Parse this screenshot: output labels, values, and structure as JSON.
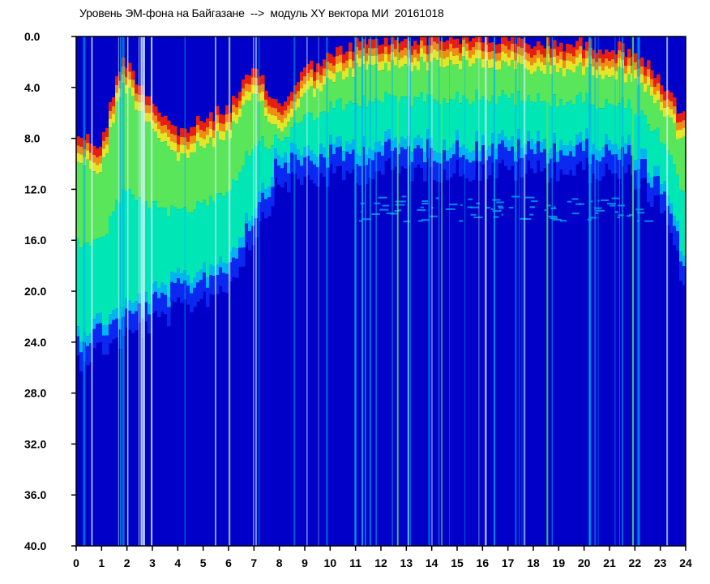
{
  "chart_data": {
    "type": "heatmap",
    "title": "Уровень ЭМ-фона на Байгазане  -->  модуль XY вектора МИ  20161018",
    "xlabel": "",
    "ylabel": "",
    "x_range": [
      0,
      24
    ],
    "y_range": [
      0.0,
      40.0
    ],
    "y_inverted": true,
    "grid": false,
    "colormap": [
      "#0000c8",
      "#0a28f0",
      "#00b4f0",
      "#00e6b4",
      "#5ae65a",
      "#e6e628",
      "#f08c14",
      "#e61e14"
    ],
    "x_tick_labels": [
      "0",
      "1",
      "2",
      "3",
      "4",
      "5",
      "6",
      "7",
      "8",
      "9",
      "10",
      "11",
      "12",
      "13",
      "14",
      "15",
      "16",
      "17",
      "18",
      "19",
      "20",
      "21",
      "22",
      "23",
      "24"
    ],
    "y_tick_labels": [
      "0.0",
      "4.0",
      "8.0",
      "12.0",
      "16.0",
      "20.0",
      "24.0",
      "28.0",
      "32.0",
      "36.0",
      "40.0"
    ],
    "bright_band_top_by_hour": [
      {
        "hour": 0,
        "y": 8.0
      },
      {
        "hour": 1,
        "y": 9.0
      },
      {
        "hour": 1.8,
        "y": 2.0
      },
      {
        "hour": 2.5,
        "y": 4.0
      },
      {
        "hour": 3.2,
        "y": 6.0
      },
      {
        "hour": 4,
        "y": 8.0
      },
      {
        "hour": 5,
        "y": 7.0
      },
      {
        "hour": 6,
        "y": 6.0
      },
      {
        "hour": 7,
        "y": 3.0
      },
      {
        "hour": 8,
        "y": 6.0
      },
      {
        "hour": 9,
        "y": 3.0
      },
      {
        "hour": 10,
        "y": 2.0
      },
      {
        "hour": 11,
        "y": 1.0
      },
      {
        "hour": 12,
        "y": 0.8
      },
      {
        "hour": 14,
        "y": 0.5
      },
      {
        "hour": 16,
        "y": 0.5
      },
      {
        "hour": 18,
        "y": 1.0
      },
      {
        "hour": 20,
        "y": 1.0
      },
      {
        "hour": 22,
        "y": 1.5
      },
      {
        "hour": 23,
        "y": 4.0
      },
      {
        "hour": 24,
        "y": 7.0
      }
    ],
    "bright_band_bottom_by_hour": [
      {
        "hour": 0,
        "y": 24.0
      },
      {
        "hour": 2,
        "y": 22.0
      },
      {
        "hour": 4,
        "y": 20.0
      },
      {
        "hour": 6,
        "y": 18.0
      },
      {
        "hour": 8,
        "y": 10.0
      },
      {
        "hour": 10,
        "y": 9.5
      },
      {
        "hour": 12,
        "y": 9.0
      },
      {
        "hour": 16,
        "y": 9.0
      },
      {
        "hour": 20,
        "y": 9.0
      },
      {
        "hour": 22,
        "y": 9.5
      },
      {
        "hour": 23,
        "y": 12.0
      },
      {
        "hour": 24,
        "y": 18.0
      }
    ],
    "secondary_band": {
      "y_from": 12.5,
      "y_to": 14.5,
      "x_from": 11,
      "x_to": 22.5
    }
  }
}
